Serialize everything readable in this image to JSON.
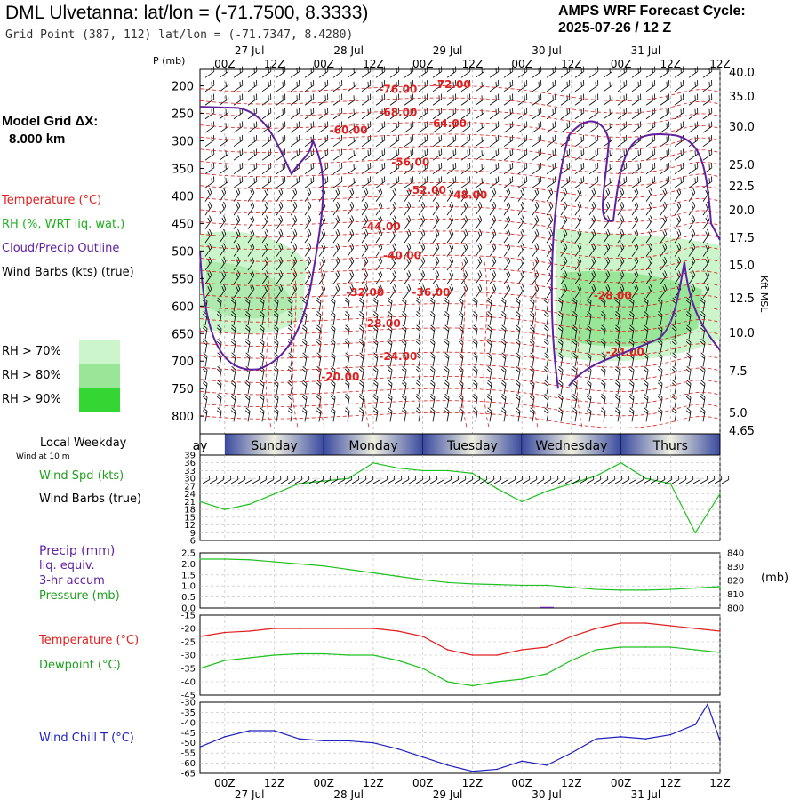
{
  "header": {
    "title": "DML Ulvetanna:  lat/lon = (-71.7500, 8.3333)",
    "subtitle": "Grid Point (387, 112) lat/lon = (-71.7347, 8.4280)",
    "cycle_line1": "AMPS WRF Forecast Cycle:",
    "cycle_line2": "2025-07-26 / 12  Z"
  },
  "left_panel": {
    "grid_dx_line1": "Model Grid ΔX:",
    "grid_dx_line2": "8.000 km",
    "legend": [
      {
        "label": "Temperature (°C)",
        "color": "#e02020"
      },
      {
        "label": "RH (%, WRT liq. wat.)",
        "color": "#20b020"
      },
      {
        "label": "Cloud/Precip Outline",
        "color": "#6020a0"
      },
      {
        "label": "Wind Barbs (kts) (true)",
        "color": "#000000"
      }
    ],
    "rh_legend": [
      {
        "label": "RH > 70%",
        "color": "#ccf5cc"
      },
      {
        "label": "RH > 80%",
        "color": "#99e699"
      },
      {
        "label": "RH > 90%",
        "color": "#33d633"
      }
    ]
  },
  "date_labels": [
    {
      "text": "27 Jul",
      "hour": 6
    },
    {
      "text": "28 Jul",
      "hour": 30
    },
    {
      "text": "29 Jul",
      "hour": 54
    },
    {
      "text": "30 Jul",
      "hour": 78
    },
    {
      "text": "31 Jul",
      "hour": 102
    }
  ],
  "hour_labels": [
    "00Z",
    "12Z",
    "00Z",
    "12Z",
    "00Z",
    "12Z",
    "00Z",
    "12Z",
    "00Z",
    "12Z"
  ],
  "weekday_bar": {
    "label_line1": "Local Weekday",
    "label_line2": "Wind at 10 m",
    "days": [
      "ay",
      "Sunday",
      "Monday",
      "Tuesday",
      "Wednesday",
      "Thurs"
    ]
  },
  "colors": {
    "temperature": "#e02020",
    "dewpoint": "#20c020",
    "rh_line": "#20b020",
    "cloud_outline": "#6020a0",
    "wind_speed": "#20c020",
    "pressure": "#20c020",
    "wind_chill": "#2020c0",
    "grid": "#b0b0b0",
    "weekday_dark": "#3a4aa0",
    "weekday_light": "#f0f0e0"
  },
  "panel_labels": {
    "wind": [
      {
        "text": "Wind Spd (kts)",
        "color": "#20a020"
      },
      {
        "text": "Wind Barbs (true)",
        "color": "#000000"
      }
    ],
    "precip": [
      {
        "text": "Precip (mm)",
        "color": "#6020a0"
      },
      {
        "text": "liq. equiv.",
        "color": "#6020a0"
      },
      {
        "text": "3-hr accum",
        "color": "#6020a0"
      },
      {
        "text": "Pressure (mb)",
        "color": "#20a020"
      }
    ],
    "temp": [
      {
        "text": "Temperature (°C)",
        "color": "#e02020"
      },
      {
        "text": "Dewpoint (°C)",
        "color": "#20a020"
      }
    ],
    "chill": [
      {
        "text": "Wind Chill T (°C)",
        "color": "#2020c0"
      }
    ],
    "pressure_unit": "(mb)",
    "p_axis_title": "P (mb)",
    "kft_title": "Kft MSL"
  },
  "chart_data": [
    {
      "type": "contour",
      "name": "cross-section",
      "x_hours_range": [
        -6,
        120
      ],
      "pressure_ticks": [
        200,
        250,
        300,
        350,
        400,
        450,
        500,
        550,
        600,
        650,
        700,
        750,
        800
      ],
      "kft_ticks": [
        "40.0",
        "35.0",
        "30.0",
        "25.0",
        "22.5",
        "20.0",
        "17.5",
        "15.0",
        "12.5",
        "10.0",
        "7.5",
        "5.0",
        "4.65"
      ],
      "temperature_labels": [
        {
          "text": "-76.00",
          "hour": 42,
          "p": 213
        },
        {
          "text": "-72.00",
          "hour": 55,
          "p": 204
        },
        {
          "text": "-68.00",
          "hour": 42,
          "p": 255
        },
        {
          "text": "-64.00",
          "hour": 54,
          "p": 275
        },
        {
          "text": "-60.00",
          "hour": 30,
          "p": 287
        },
        {
          "text": "-56.00",
          "hour": 45,
          "p": 345
        },
        {
          "text": "-52.00",
          "hour": 49,
          "p": 396
        },
        {
          "text": "-48.00",
          "hour": 59,
          "p": 405
        },
        {
          "text": "-44.00",
          "hour": 38,
          "p": 462
        },
        {
          "text": "-40.00",
          "hour": 43,
          "p": 515
        },
        {
          "text": "-36.00",
          "hour": 50,
          "p": 582
        },
        {
          "text": "-32.00",
          "hour": 34,
          "p": 582
        },
        {
          "text": "-28.00",
          "hour": 38,
          "p": 638
        },
        {
          "text": "-28.00",
          "hour": 94,
          "p": 587
        },
        {
          "text": "-24.00",
          "hour": 42,
          "p": 698
        },
        {
          "text": "-24.00",
          "hour": 97,
          "p": 690
        },
        {
          "text": "-20.00",
          "hour": 28,
          "p": 735
        }
      ]
    },
    {
      "type": "line",
      "name": "wind",
      "x": [
        -6,
        0,
        6,
        12,
        18,
        24,
        30,
        36,
        42,
        48,
        54,
        60,
        66,
        72,
        78,
        84,
        90,
        96,
        102,
        108,
        114,
        120
      ],
      "ylim": [
        6,
        39
      ],
      "y_ticks": [
        6,
        9,
        12,
        15,
        18,
        21,
        24,
        27,
        30,
        33,
        36,
        39
      ],
      "series": [
        {
          "name": "Wind Spd (kts)",
          "values": [
            21,
            18,
            20,
            24,
            28,
            29,
            30,
            36,
            34,
            33,
            33,
            32,
            26,
            21,
            25,
            28,
            31,
            36,
            30,
            28,
            9,
            24
          ]
        }
      ]
    },
    {
      "type": "line",
      "name": "precip-pressure",
      "x": [
        -6,
        0,
        6,
        12,
        18,
        24,
        30,
        36,
        42,
        48,
        54,
        60,
        66,
        72,
        78,
        84,
        90,
        96,
        102,
        108,
        114,
        120
      ],
      "ylim": [
        0,
        2.5
      ],
      "y_ticks": [
        0.0,
        0.5,
        1.0,
        1.5,
        2.0,
        2.5
      ],
      "ylim_right": [
        800,
        840
      ],
      "y_ticks_right": [
        800,
        810,
        820,
        830,
        840
      ],
      "series": [
        {
          "name": "Pressure (mb)",
          "values": [
            835.5,
            835.5,
            835,
            833.5,
            832,
            830.5,
            828,
            825.5,
            823,
            820.5,
            818.5,
            817.5,
            817,
            816.5,
            816.5,
            815,
            813.5,
            813,
            813,
            813.5,
            814.5,
            815.5
          ]
        },
        {
          "name": "Precip (mm)",
          "values": [
            0,
            0,
            0,
            0,
            0,
            0,
            0,
            0,
            0,
            0,
            0,
            0,
            0,
            0,
            0.05,
            0,
            0,
            0,
            0,
            0,
            0,
            0
          ]
        }
      ]
    },
    {
      "type": "line",
      "name": "temperature",
      "x": [
        -6,
        0,
        6,
        12,
        18,
        24,
        30,
        36,
        42,
        48,
        54,
        60,
        66,
        72,
        78,
        84,
        90,
        96,
        102,
        108,
        114,
        120
      ],
      "ylim": [
        -45,
        -15
      ],
      "y_ticks": [
        -45,
        -40,
        -35,
        -30,
        -25,
        -20,
        -15
      ],
      "series": [
        {
          "name": "Temperature (°C)",
          "values": [
            -23,
            -21.5,
            -21,
            -20,
            -20,
            -20,
            -20,
            -20,
            -21,
            -23,
            -28,
            -30,
            -30,
            -28,
            -27,
            -23,
            -20,
            -18,
            -18,
            -19,
            -20,
            -21
          ]
        },
        {
          "name": "Dewpoint (°C)",
          "values": [
            -35,
            -32,
            -31,
            -30,
            -29.5,
            -29.5,
            -30,
            -30,
            -32,
            -35,
            -40,
            -41.5,
            -40,
            -39,
            -37,
            -32,
            -28,
            -27,
            -27,
            -27,
            -28,
            -29
          ]
        }
      ]
    },
    {
      "type": "line",
      "name": "wind-chill",
      "x": [
        -6,
        0,
        6,
        12,
        18,
        24,
        30,
        36,
        42,
        48,
        54,
        60,
        66,
        72,
        78,
        84,
        90,
        96,
        102,
        108,
        114,
        117,
        120
      ],
      "ylim": [
        -65,
        -30
      ],
      "y_ticks": [
        -65,
        -60,
        -55,
        -50,
        -45,
        -40,
        -35,
        -30
      ],
      "series": [
        {
          "name": "Wind Chill T (°C)",
          "values": [
            -52,
            -47,
            -44,
            -44,
            -48,
            -49,
            -49,
            -50,
            -53,
            -57,
            -61,
            -64,
            -63,
            -59,
            -61,
            -55,
            -48,
            -47,
            -48,
            -46,
            -41,
            -31,
            -49
          ]
        }
      ]
    }
  ]
}
